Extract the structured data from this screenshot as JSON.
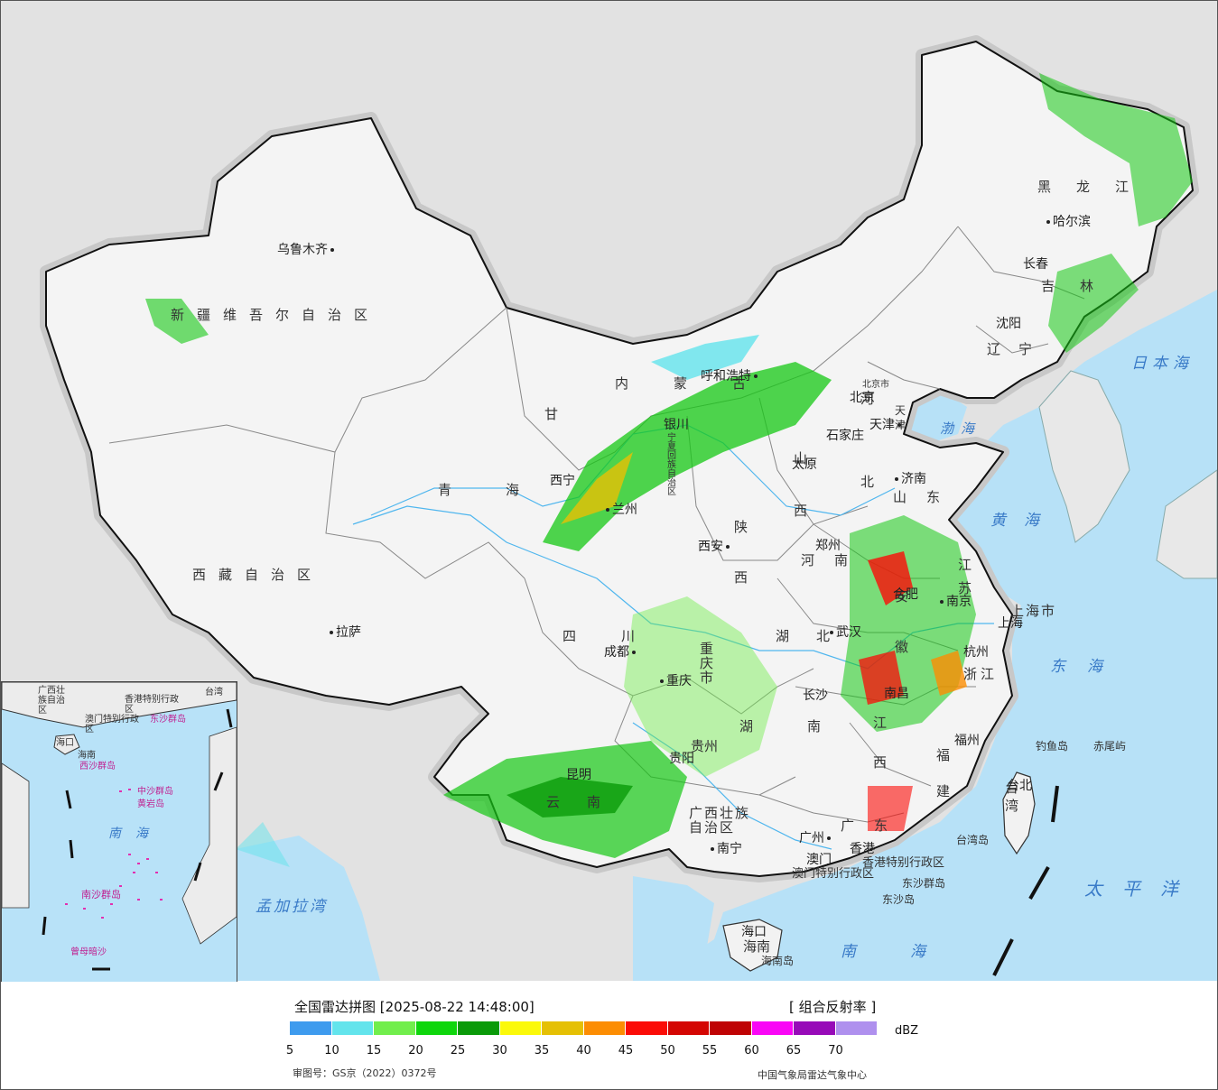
{
  "map": {
    "provinces": {
      "xinjiang": "新疆维吾尔自治区",
      "xizang": "西藏自治区",
      "qinghai": "青海",
      "gansu": "甘",
      "neimenggu": "内蒙古",
      "sichuan": "四川",
      "chongqing": "重庆市",
      "shaanxi": "陕西",
      "shanxi": "山西",
      "henan": "河南",
      "hubei": "湖北",
      "hunan": "湖南",
      "guizhou": "贵州",
      "yunnan": "云南",
      "guangxi": "广西壮族自治区",
      "guangdong": "广东",
      "jiangxi": "江西",
      "fujian": "福建",
      "zhejiang": "浙江",
      "anhui": "安徽",
      "jiangsu": "江苏",
      "shandong": "山东",
      "hebei": "河北",
      "liaoning": "辽宁",
      "jilin": "吉林",
      "heilongjiang": "黑龙江",
      "ningxia": "宁夏回族自治区",
      "shanghai": "上海市",
      "tianjin": "天津",
      "beijing": "北京市",
      "taiwan": "台湾",
      "hainan": "海南",
      "hk": "香港特别行政区",
      "macau": "澳门特别行政区"
    },
    "cities": {
      "urumqi": "乌鲁木齐",
      "lhasa": "拉萨",
      "xining": "西宁",
      "lanzhou": "兰州",
      "yinchuan": "银川",
      "hohhot": "呼和浩特",
      "beijing": "北京",
      "tianjin": "天津",
      "shijiazhuang": "石家庄",
      "taiyuan": "太原",
      "jinan": "济南",
      "xian": "西安",
      "zhengzhou": "郑州",
      "chengdu": "成都",
      "chongqing": "重庆",
      "wuhan": "武汉",
      "hefei": "合肥",
      "nanjing": "南京",
      "shanghai": "上海",
      "hangzhou": "杭州",
      "changsha": "长沙",
      "nanchang": "南昌",
      "fuzhou": "福州",
      "guiyang": "贵阳",
      "kunming": "昆明",
      "nanning": "南宁",
      "guangzhou": "广州",
      "hongkong": "香港",
      "macau": "澳门",
      "haikou": "海口",
      "taibei": "台北",
      "shenyang": "沈阳",
      "changchun": "长春",
      "harbin": "哈尔滨"
    },
    "seas": {
      "bohai": "渤海",
      "huanghai": "黄海",
      "donghai": "东海",
      "nanhai": "南海",
      "taipingyang": "太平洋",
      "ribenhai": "日本海",
      "mengjialawan": "孟加拉湾"
    },
    "islands": {
      "diaoyu": "钓鱼岛",
      "chiwei": "赤尾屿",
      "taiwan_dao": "台湾岛",
      "hainan_dao": "海南岛",
      "dongsha": "东沙群岛",
      "dongsha2": "东沙岛"
    },
    "inset": {
      "nanhai": "南海",
      "xisha": "西沙群岛",
      "zhongsha": "中沙群岛",
      "nansha": "南沙群岛",
      "huangyan": "黄岩岛",
      "zengmu": "曾母暗沙",
      "guangxi": "广西壮族自治区",
      "hk": "香港特别行政区",
      "macau": "澳门特别行政区",
      "taiwan": "台湾",
      "haikou": "海口",
      "hainan": "海南"
    }
  },
  "legend": {
    "title": "全国雷达拼图 [2025-08-22 14:48:00]",
    "product": "[ 组合反射率 ]",
    "unit": "dBZ",
    "ticks": [
      "5",
      "10",
      "15",
      "20",
      "25",
      "30",
      "35",
      "40",
      "45",
      "50",
      "55",
      "60",
      "65",
      "70"
    ],
    "colors": [
      "#3e9bee",
      "#63e4ec",
      "#71ee4c",
      "#0ed60c",
      "#0a9a09",
      "#fbf90a",
      "#e5c004",
      "#fc8d03",
      "#fb0c07",
      "#d40603",
      "#bf0304",
      "#f905f6",
      "#970ab8",
      "#af90ee"
    ],
    "review_number": "审图号：GS京（2022）0372号",
    "source": "中国气象局雷达气象中心"
  }
}
